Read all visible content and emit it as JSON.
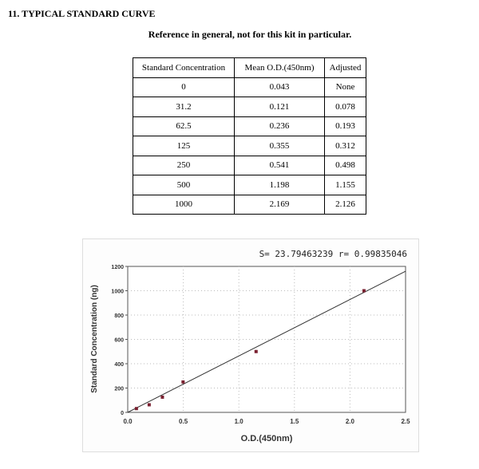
{
  "section_title": "11. TYPICAL STANDARD CURVE",
  "subtitle": "Reference in general, not for this kit in particular.",
  "table": {
    "headers": [
      "Standard Concentration",
      "Mean O.D.(450nm)",
      "Adjusted"
    ],
    "rows": [
      [
        "0",
        "0.043",
        "None"
      ],
      [
        "31.2",
        "0.121",
        "0.078"
      ],
      [
        "62.5",
        "0.236",
        "0.193"
      ],
      [
        "125",
        "0.355",
        "0.312"
      ],
      [
        "250",
        "0.541",
        "0.498"
      ],
      [
        "500",
        "1.198",
        "1.155"
      ],
      [
        "1000",
        "2.169",
        "2.126"
      ]
    ]
  },
  "chart_data": {
    "type": "scatter",
    "annotation": "S= 23.79463239  r= 0.99835046",
    "xlabel": "O.D.(450nm)",
    "ylabel": "Standard Concentration (ng)",
    "xlim": [
      0,
      2.5
    ],
    "ylim": [
      0,
      1200
    ],
    "xticks": [
      "0.0",
      "0.5",
      "1.0",
      "1.5",
      "2.0",
      "2.5"
    ],
    "yticks": [
      "0",
      "200",
      "400",
      "600",
      "800",
      "1000",
      "1200"
    ],
    "grid": true,
    "points": {
      "x": [
        0.078,
        0.193,
        0.312,
        0.498,
        1.155,
        2.126
      ],
      "y": [
        31.2,
        62.5,
        125,
        250,
        500,
        1000
      ]
    },
    "fit_line": {
      "x": [
        0,
        2.5
      ],
      "y": [
        0,
        1160
      ]
    },
    "colors": {
      "points": "#7a2030",
      "line": "#333333",
      "grid": "#bbbbbb"
    }
  }
}
